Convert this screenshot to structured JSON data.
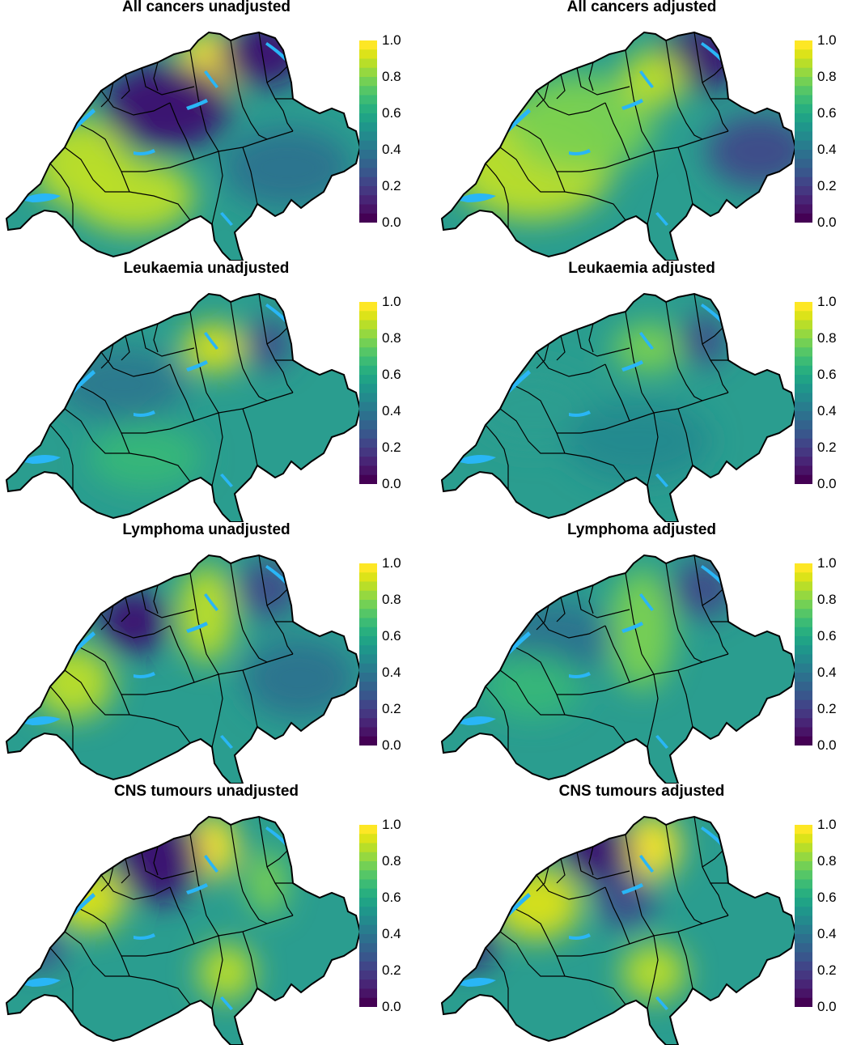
{
  "panels": [
    {
      "title": "All cancers unadjusted",
      "blobs": [
        {
          "cx": 258,
          "cy": 60,
          "rx": 40,
          "ry": 45,
          "color": "#fde725"
        },
        {
          "cx": 205,
          "cy": 110,
          "rx": 80,
          "ry": 55,
          "color": "#3b0f70"
        },
        {
          "cx": 325,
          "cy": 45,
          "rx": 55,
          "ry": 40,
          "color": "#3b0f70"
        },
        {
          "cx": 100,
          "cy": 180,
          "rx": 60,
          "ry": 55,
          "color": "#bddf26"
        },
        {
          "cx": 165,
          "cy": 220,
          "rx": 75,
          "ry": 45,
          "color": "#bddf26"
        },
        {
          "cx": 355,
          "cy": 185,
          "rx": 80,
          "ry": 50,
          "color": "#2c728e"
        }
      ]
    },
    {
      "title": "All cancers adjusted",
      "blobs": [
        {
          "cx": 325,
          "cy": 50,
          "rx": 55,
          "ry": 40,
          "color": "#3b0f70"
        },
        {
          "cx": 400,
          "cy": 165,
          "rx": 65,
          "ry": 45,
          "color": "#3e4a89"
        },
        {
          "cx": 120,
          "cy": 180,
          "rx": 100,
          "ry": 70,
          "color": "#bddf26"
        },
        {
          "cx": 180,
          "cy": 130,
          "rx": 90,
          "ry": 60,
          "color": "#7ad151"
        },
        {
          "cx": 270,
          "cy": 75,
          "rx": 40,
          "ry": 35,
          "color": "#bddf26"
        }
      ]
    },
    {
      "title": "Leukaemia unadjusted",
      "blobs": [
        {
          "cx": 265,
          "cy": 85,
          "rx": 40,
          "ry": 30,
          "color": "#dce319"
        },
        {
          "cx": 330,
          "cy": 80,
          "rx": 30,
          "ry": 30,
          "color": "#3e4a89"
        },
        {
          "cx": 150,
          "cy": 130,
          "rx": 80,
          "ry": 45,
          "color": "#2a788e"
        },
        {
          "cx": 180,
          "cy": 220,
          "rx": 70,
          "ry": 40,
          "color": "#35b779"
        }
      ]
    },
    {
      "title": "Leukaemia adjusted",
      "blobs": [
        {
          "cx": 265,
          "cy": 85,
          "rx": 45,
          "ry": 30,
          "color": "#7ad151"
        },
        {
          "cx": 330,
          "cy": 75,
          "rx": 30,
          "ry": 30,
          "color": "#3e4a89"
        },
        {
          "cx": 120,
          "cy": 160,
          "rx": 80,
          "ry": 50,
          "color": "#2a9d8f"
        },
        {
          "cx": 250,
          "cy": 200,
          "rx": 90,
          "ry": 50,
          "color": "#23898e"
        }
      ]
    },
    {
      "title": "Lymphoma unadjusted",
      "blobs": [
        {
          "cx": 165,
          "cy": 100,
          "rx": 45,
          "ry": 40,
          "color": "#3b0f70"
        },
        {
          "cx": 255,
          "cy": 90,
          "rx": 35,
          "ry": 60,
          "color": "#bddf26"
        },
        {
          "cx": 330,
          "cy": 60,
          "rx": 40,
          "ry": 35,
          "color": "#3e4a89"
        },
        {
          "cx": 90,
          "cy": 175,
          "rx": 50,
          "ry": 45,
          "color": "#bddf26"
        },
        {
          "cx": 370,
          "cy": 170,
          "rx": 70,
          "ry": 50,
          "color": "#2c728e"
        }
      ]
    },
    {
      "title": "Lymphoma adjusted",
      "blobs": [
        {
          "cx": 255,
          "cy": 110,
          "rx": 40,
          "ry": 75,
          "color": "#7ad151"
        },
        {
          "cx": 330,
          "cy": 60,
          "rx": 40,
          "ry": 35,
          "color": "#3e4a89"
        },
        {
          "cx": 150,
          "cy": 120,
          "rx": 70,
          "ry": 45,
          "color": "#2c728e"
        },
        {
          "cx": 120,
          "cy": 180,
          "rx": 60,
          "ry": 40,
          "color": "#35b779"
        }
      ]
    },
    {
      "title": "CNS tumours unadjusted",
      "blobs": [
        {
          "cx": 262,
          "cy": 55,
          "rx": 32,
          "ry": 40,
          "color": "#fde725"
        },
        {
          "cx": 195,
          "cy": 70,
          "rx": 55,
          "ry": 55,
          "color": "#3b0f70"
        },
        {
          "cx": 110,
          "cy": 120,
          "rx": 45,
          "ry": 40,
          "color": "#dce319"
        },
        {
          "cx": 330,
          "cy": 100,
          "rx": 25,
          "ry": 40,
          "color": "#7ad151"
        },
        {
          "cx": 45,
          "cy": 180,
          "rx": 35,
          "ry": 25,
          "color": "#3e4a89"
        },
        {
          "cx": 280,
          "cy": 210,
          "rx": 35,
          "ry": 35,
          "color": "#bddf26"
        }
      ]
    },
    {
      "title": "CNS tumours adjusted",
      "blobs": [
        {
          "cx": 268,
          "cy": 55,
          "rx": 35,
          "ry": 40,
          "color": "#fde725"
        },
        {
          "cx": 200,
          "cy": 60,
          "rx": 45,
          "ry": 40,
          "color": "#3b0f70"
        },
        {
          "cx": 125,
          "cy": 125,
          "rx": 55,
          "ry": 45,
          "color": "#dce319"
        },
        {
          "cx": 235,
          "cy": 120,
          "rx": 35,
          "ry": 35,
          "color": "#3e4a89"
        },
        {
          "cx": 40,
          "cy": 175,
          "rx": 35,
          "ry": 28,
          "color": "#3b0f70"
        },
        {
          "cx": 270,
          "cy": 210,
          "rx": 40,
          "ry": 35,
          "color": "#bddf26"
        }
      ]
    }
  ],
  "colorbar": {
    "ticks": [
      "1.0",
      "0.8",
      "0.6",
      "0.4",
      "0.2",
      "0.0"
    ],
    "colors": [
      "#fde725",
      "#dce319",
      "#b8de29",
      "#95d840",
      "#73d055",
      "#55c667",
      "#3cbb75",
      "#29af7f",
      "#20a386",
      "#1f968b",
      "#238a8d",
      "#287d8e",
      "#2d708e",
      "#33638d",
      "#39568c",
      "#404688",
      "#453781",
      "#482576",
      "#481467",
      "#440154"
    ]
  },
  "colors": {
    "base": "#2a9d8f",
    "border": "#000000",
    "lake": "#29b6f6"
  }
}
